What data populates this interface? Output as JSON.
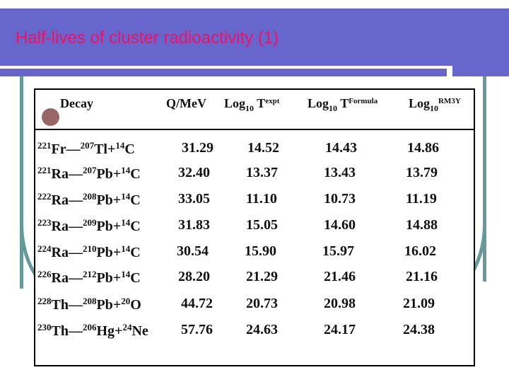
{
  "slide": {
    "title": "Half-lives of cluster radioactivity (1)",
    "colors": {
      "title_bar": "#6666cc",
      "title_text": "#ee1166",
      "frame": "#669999",
      "bullet": "#996666"
    }
  },
  "table": {
    "headers": {
      "decay": "Decay",
      "q": "Q/MeV",
      "expt": {
        "base": "Log",
        "sub": "10",
        "t": " T",
        "sup": "expt"
      },
      "formula": {
        "base": "Log",
        "sub": "10",
        "t": " T",
        "sup": "Formula"
      },
      "rm3y": {
        "base": "Log",
        "sub": "10",
        "sup": "RM3Y"
      }
    },
    "rows": [
      {
        "p_a": "221",
        "p": "Fr",
        "d_a": "207",
        "d": "Tl",
        "c_a": "14",
        "c": "C",
        "q": "31.29",
        "expt": "14.52",
        "formula": "14.43",
        "rm3y": "14.86"
      },
      {
        "p_a": "221",
        "p": "Ra",
        "d_a": "207",
        "d": "Pb",
        "c_a": "14",
        "c": "C",
        "q": "32.40",
        "expt": "13.37",
        "formula": "13.43",
        "rm3y": "13.79"
      },
      {
        "p_a": "222",
        "p": "Ra",
        "d_a": "208",
        "d": "Pb",
        "c_a": "14",
        "c": "C",
        "q": "33.05",
        "expt": "11.10",
        "formula": "10.73",
        "rm3y": "11.19"
      },
      {
        "p_a": "223",
        "p": "Ra",
        "d_a": "209",
        "d": "Pb",
        "c_a": "14",
        "c": "C",
        "q": "31.83",
        "expt": "15.05",
        "formula": "14.60",
        "rm3y": "14.88"
      },
      {
        "p_a": "224",
        "p": "Ra",
        "d_a": "210",
        "d": "Pb",
        "c_a": "14",
        "c": "C",
        "q": "30.54",
        "expt": "15.90",
        "formula": "15.97",
        "rm3y": "16.02"
      },
      {
        "p_a": "226",
        "p": "Ra",
        "d_a": "212",
        "d": "Pb",
        "c_a": "14",
        "c": "C",
        "q": "28.20",
        "expt": "21.29",
        "formula": "21.46",
        "rm3y": "21.16"
      },
      {
        "p_a": "228",
        "p": "Th",
        "d_a": "208",
        "d": "Pb",
        "c_a": "20",
        "c": "O",
        "q": "44.72",
        "expt": "20.73",
        "formula": "20.98",
        "rm3y": "21.09"
      },
      {
        "p_a": "230",
        "p": "Th",
        "d_a": "206",
        "d": "Hg",
        "c_a": "24",
        "c": "Ne",
        "q": "57.76",
        "expt": "24.63",
        "formula": "24.17",
        "rm3y": "24.38"
      }
    ],
    "separator": "—",
    "plus": "+"
  }
}
